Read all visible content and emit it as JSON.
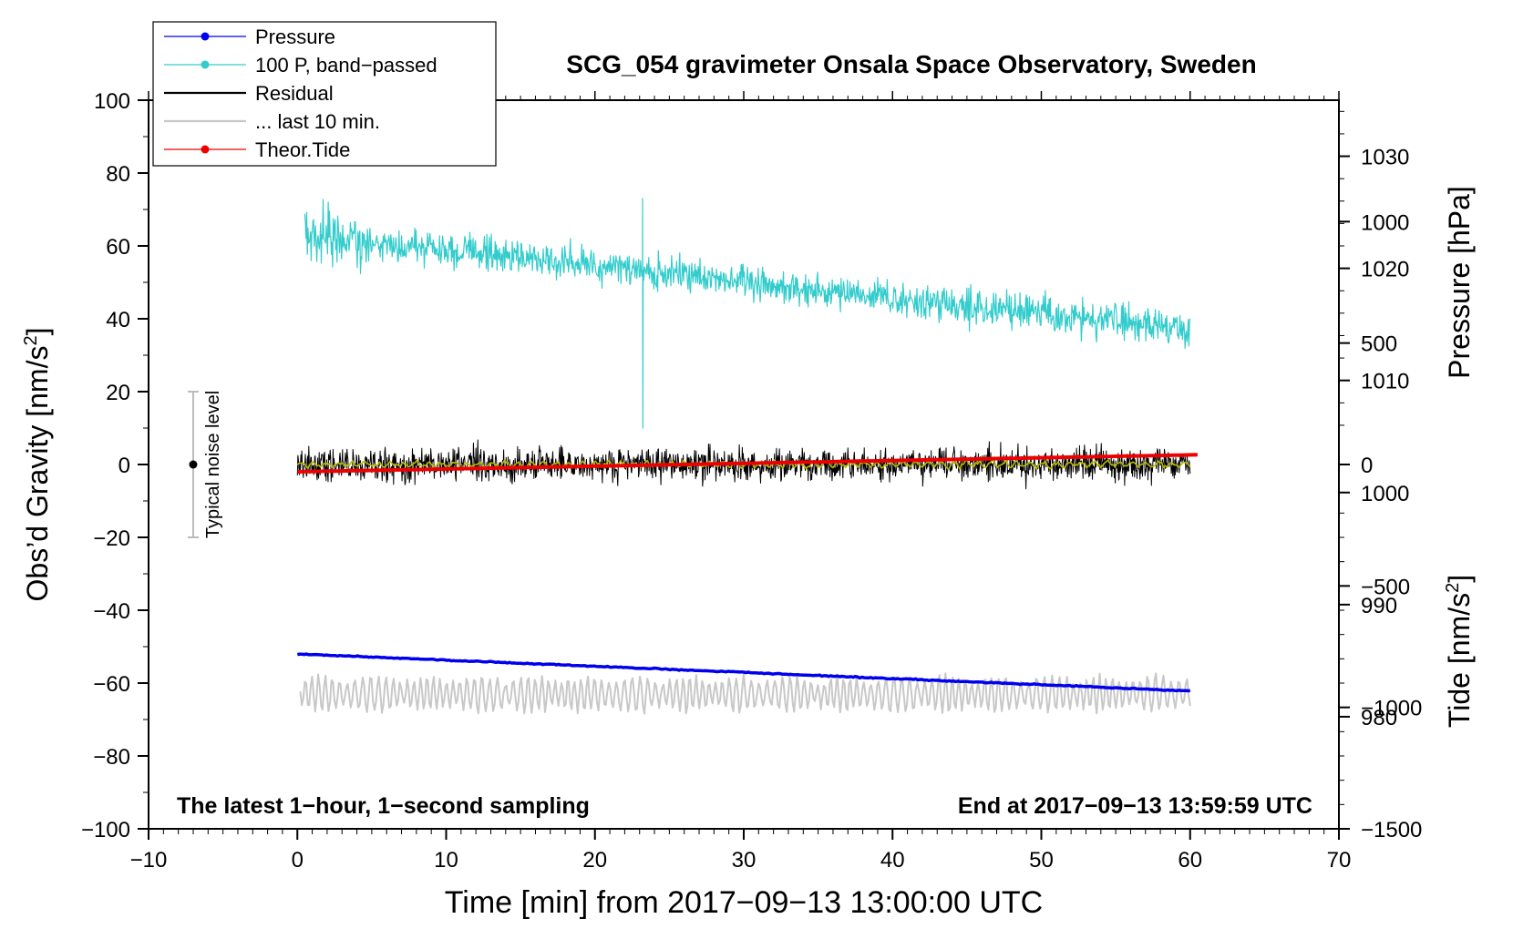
{
  "chart_data": {
    "type": "line",
    "title": "SCG_054 gravimeter Onsala Space Observatory, Sweden",
    "xlabel": "Time [min] from 2017−09−13 13:00:00 UTC",
    "ylabel_left": "Obs’d Gravity [nm/s",
    "ylabel_left_sup": "2",
    "ylabel_left_end": "]",
    "ylabel_right_pressure": "Pressure [hPa]",
    "ylabel_right_tide": "Tide [nm/s",
    "ylabel_right_tide_sup": "2",
    "ylabel_right_tide_end": "]",
    "xlim": [
      -10,
      70
    ],
    "ylim_left": [
      -100,
      100
    ],
    "pressure_ylim": [
      970,
      1035
    ],
    "tide_ylim": [
      -1500,
      1500
    ],
    "x_ticks": [
      -10,
      0,
      10,
      20,
      30,
      40,
      50,
      60,
      70
    ],
    "x_tick_labels": [
      "−10",
      "0",
      "10",
      "20",
      "30",
      "40",
      "50",
      "60",
      "70"
    ],
    "y_left_ticks": [
      -100,
      -80,
      -60,
      -40,
      -20,
      0,
      20,
      40,
      60,
      80,
      100
    ],
    "y_left_tick_labels": [
      "−100",
      "−80",
      "−60",
      "−40",
      "−20",
      "0",
      "20",
      "40",
      "60",
      "80",
      "100"
    ],
    "pressure_ticks": [
      980,
      990,
      1000,
      1010,
      1020,
      1030
    ],
    "pressure_tick_labels": [
      "980",
      "990",
      "1000",
      "1010",
      "1020",
      "1030"
    ],
    "tide_ticks": [
      -1500,
      -1000,
      -500,
      0,
      500,
      1000
    ],
    "tide_tick_labels": [
      "−1500",
      "−1000",
      "−500",
      "0",
      "500",
      "1000"
    ],
    "legend": [
      {
        "label": "Pressure",
        "color": "#0000ee",
        "marker": true
      },
      {
        "label": "100 P, band−passed",
        "color": "#33cccc",
        "marker": true
      },
      {
        "label": "Residual",
        "color": "#000000",
        "marker": false
      },
      {
        "label": "... last 10 min.",
        "color": "#c8c8c8",
        "marker": false
      },
      {
        "label": "Theor.Tide",
        "color": "#ee0000",
        "marker": true
      }
    ],
    "legend_position": "top-left",
    "annotation_left": "The latest 1−hour, 1−second sampling",
    "annotation_right": "End at 2017−09−13 13:59:59 UTC",
    "noise_label": "Typical noise level",
    "noise_bar": {
      "x": -7,
      "center": 0,
      "half_range": 20
    },
    "series": [
      {
        "name": "Pressure",
        "axis": "pressure",
        "color": "#0000ee",
        "x_range": [
          0,
          60
        ],
        "start": 985.6,
        "end": 982.3
      },
      {
        "name": "100 P, band−passed",
        "axis": "left",
        "color": "#33cccc",
        "x_range": [
          0.5,
          60
        ],
        "start": 63,
        "end": 37,
        "noise_amplitude": 5,
        "spike": {
          "x": 23.2,
          "max": 73,
          "min": 10
        }
      },
      {
        "name": "Residual",
        "axis": "left",
        "color": "#000000",
        "x_range": [
          0,
          60
        ],
        "mean": 0,
        "noise_amplitude": 4
      },
      {
        "name": "Residual smoothed",
        "axis": "left",
        "color": "#b8b800",
        "x_range": [
          0,
          60
        ],
        "mean": 0,
        "noise_amplitude": 1
      },
      {
        "name": "Theor.Tide",
        "axis": "tide",
        "color": "#ee0000",
        "x_range": [
          0,
          60.5
        ],
        "start": -30,
        "end": 40
      },
      {
        "name": "... last 10 min.",
        "axis": "left",
        "color": "#c8c8c8",
        "x_range": [
          0.2,
          60
        ],
        "mean": -63,
        "amplitude": 5
      }
    ]
  }
}
